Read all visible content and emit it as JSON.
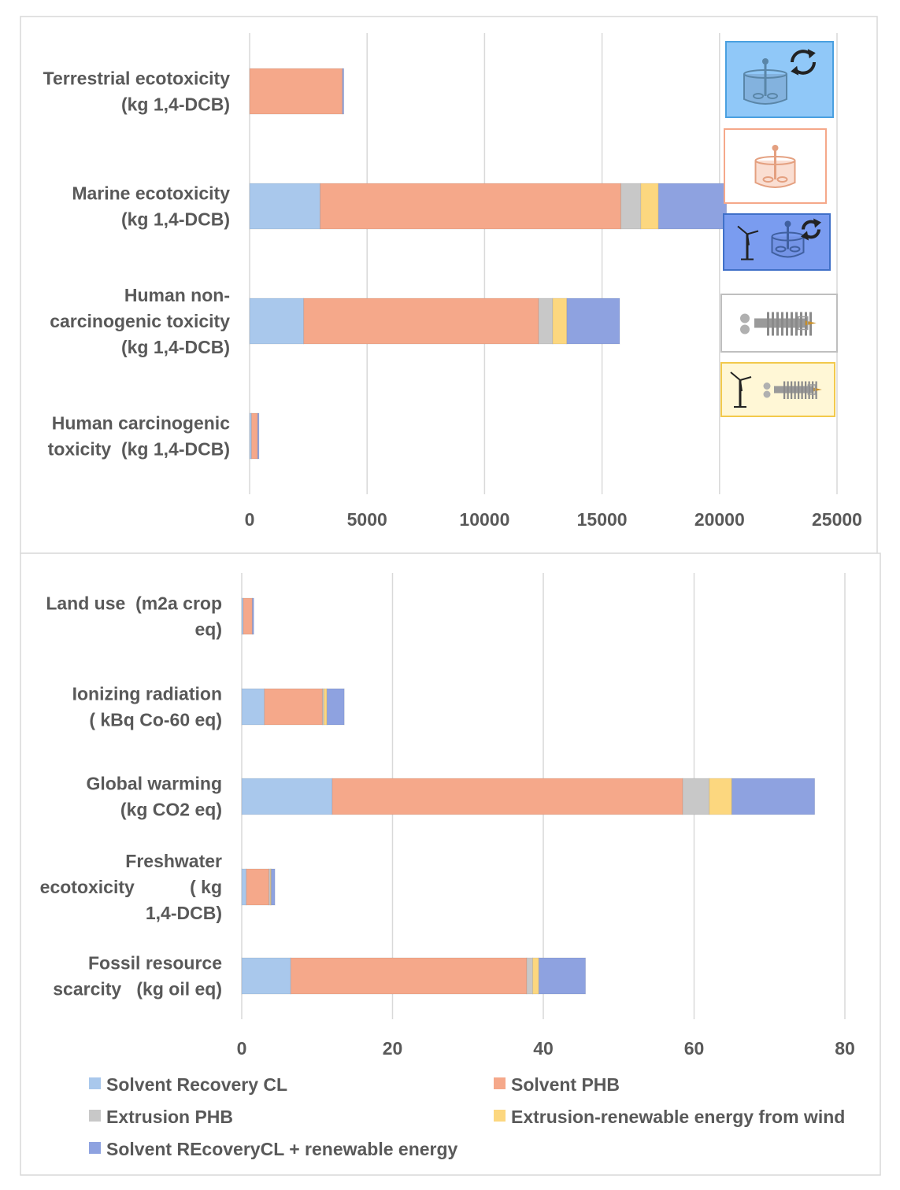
{
  "colors": {
    "Solvent Recovery CL": "#a9c8ec",
    "Solvent PHB": "#f5a88a",
    "Extrusion PHB": "#c8c8c8",
    "Extrusion-renewable energy from wind": "#fcd77f",
    "Solvent REcoveryCL + renewable energy": "#8ea2e0"
  },
  "icons": [
    {
      "name": "solvent-recovery-icon",
      "desc": "stirred tank with recycle arrows",
      "background": "#90c8f8",
      "border": "#4aa0e0"
    },
    {
      "name": "solvent-phb-icon",
      "desc": "stirred tank",
      "background": "#ffffff",
      "border": "#f5a88a"
    },
    {
      "name": "solvent-recovery-wind-icon",
      "desc": "wind turbine with stirred tank",
      "background": "#7a9cf0",
      "border": "#4070c8"
    },
    {
      "name": "extrusion-icon",
      "desc": "extruder",
      "background": "#ffffff",
      "border": "#bfbfbf"
    },
    {
      "name": "extrusion-wind-icon",
      "desc": "wind turbine with extruder",
      "background": "#fff7d6",
      "border": "#f2c94c"
    }
  ],
  "chart_data": [
    {
      "type": "bar",
      "orientation": "horizontal",
      "stacked": true,
      "categories": [
        "Terrestrial ecotoxicity (kg 1,4-DCB)",
        "Marine ecotoxicity (kg 1,4-DCB)",
        "Human non-carcinogenic toxicity (kg 1,4-DCB)",
        "Human carcinogenic toxicity (kg 1,4-DCB)"
      ],
      "category_lines": [
        [
          "Terrestrial ecotoxicity",
          "(kg 1,4-DCB)"
        ],
        [
          "Marine ecotoxicity",
          "(kg 1,4-DCB)"
        ],
        [
          "Human non-",
          "carcinogenic toxicity",
          "(kg 1,4-DCB)"
        ],
        [
          "Human carcinogenic",
          "toxicity  (kg 1,4-DCB)"
        ]
      ],
      "series": [
        {
          "name": "Solvent Recovery CL",
          "values": [
            0,
            3000,
            2300,
            80
          ]
        },
        {
          "name": "Solvent PHB",
          "values": [
            3950,
            12800,
            10000,
            260
          ]
        },
        {
          "name": "Extrusion PHB",
          "values": [
            0,
            850,
            600,
            0
          ]
        },
        {
          "name": "Extrusion-renewable energy from wind",
          "values": [
            0,
            750,
            600,
            0
          ]
        },
        {
          "name": "Solvent REcoveryCL + renewable energy",
          "values": [
            60,
            2900,
            2250,
            60
          ]
        }
      ],
      "xticks": [
        "0",
        "5000",
        "10000",
        "15000",
        "20000",
        "25000"
      ],
      "xlim": [
        0,
        25000
      ],
      "grid": true
    },
    {
      "type": "bar",
      "orientation": "horizontal",
      "stacked": true,
      "categories": [
        "Land use (m2a crop eq)",
        "Ionizing radiation ( kBq Co-60 eq)",
        "Global warming (kg CO2 eq)",
        "Freshwater ecotoxicity ( kg 1,4-DCB)",
        "Fossil resource scarcity (kg oil eq)"
      ],
      "category_lines": [
        [
          "Land use  (m2a crop",
          "eq)"
        ],
        [
          "Ionizing radiation",
          "( kBq Co-60 eq)"
        ],
        [
          "Global warming",
          "(kg CO2 eq)"
        ],
        [
          "Freshwater",
          "ecotoxicity           ( kg",
          "1,4-DCB)"
        ],
        [
          "Fossil resource",
          "scarcity   (kg oil eq)"
        ]
      ],
      "series": [
        {
          "name": "Solvent Recovery CL",
          "values": [
            0.2,
            3,
            12,
            0.6,
            6.5
          ]
        },
        {
          "name": "Solvent PHB",
          "values": [
            1.2,
            7.7,
            46.5,
            3,
            31.3
          ]
        },
        {
          "name": "Extrusion PHB",
          "values": [
            0,
            0.2,
            3.5,
            0.2,
            0.8
          ]
        },
        {
          "name": "Extrusion-renewable energy from wind",
          "values": [
            0,
            0.4,
            3,
            0.1,
            0.8
          ]
        },
        {
          "name": "Solvent REcoveryCL + renewable energy",
          "values": [
            0.2,
            2.3,
            11,
            0.5,
            6.2
          ]
        }
      ],
      "xticks": [
        "0",
        "20",
        "40",
        "60",
        "80"
      ],
      "xlim": [
        0,
        80
      ],
      "grid": true
    }
  ],
  "legend": [
    "Solvent Recovery CL",
    "Solvent PHB",
    "Extrusion PHB",
    "Extrusion-renewable energy from wind",
    "Solvent REcoveryCL + renewable energy"
  ]
}
